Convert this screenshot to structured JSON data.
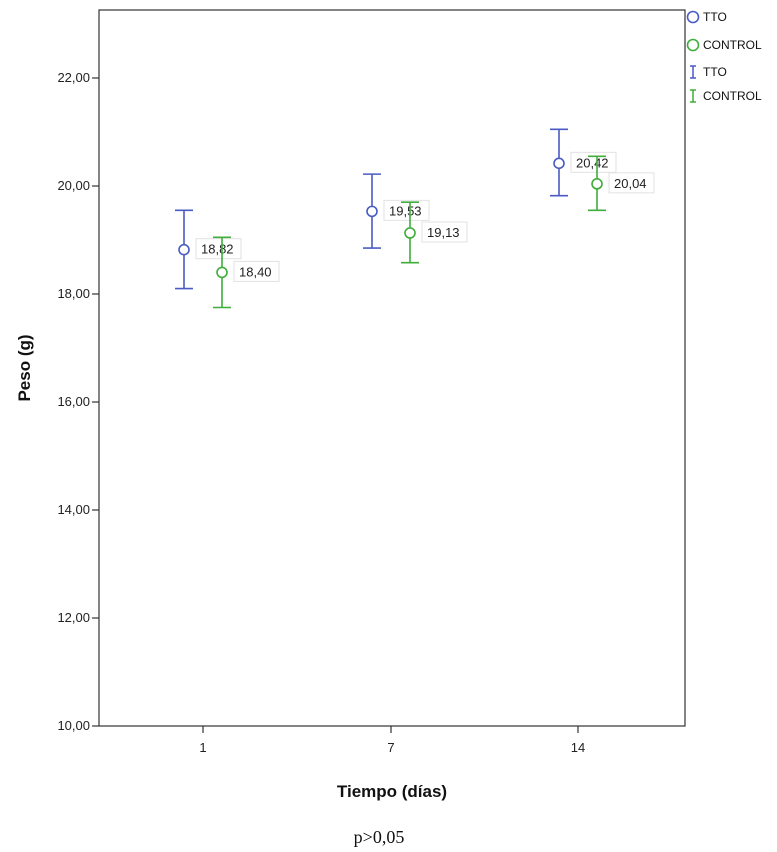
{
  "chart_data": {
    "type": "scatter",
    "title": "",
    "xlabel": "Tiempo (días)",
    "ylabel": "Peso (g)",
    "categories": [
      "1",
      "7",
      "14"
    ],
    "ylim": [
      10,
      23.5
    ],
    "yticks": [
      "10,00",
      "12,00",
      "14,00",
      "16,00",
      "18,00",
      "20,00",
      "22,00"
    ],
    "ytick_values": [
      10,
      12,
      14,
      16,
      18,
      20,
      22
    ],
    "grid": false,
    "legend_position": "top-right, outside plot",
    "legend": [
      {
        "symbol": "circle",
        "label": "TTO",
        "color": "#4a5bc4"
      },
      {
        "symbol": "circle",
        "label": "CONTROL",
        "color": "#3fae3a"
      },
      {
        "symbol": "errorbar",
        "label": "TTO",
        "color": "#4a5bc4"
      },
      {
        "symbol": "errorbar",
        "label": "CONTROL",
        "color": "#3fae3a"
      }
    ],
    "series": [
      {
        "name": "TTO",
        "color": "#4a5bc4",
        "values": [
          18.82,
          19.53,
          20.42
        ],
        "labels": [
          "18,82",
          "19,53",
          "20,42"
        ],
        "ci_low": [
          18.1,
          18.85,
          19.82
        ],
        "ci_high": [
          19.55,
          20.22,
          21.05
        ]
      },
      {
        "name": "CONTROL",
        "color": "#3fae3a",
        "values": [
          18.4,
          19.13,
          20.04
        ],
        "labels": [
          "18,40",
          "19,13",
          "20,04"
        ],
        "ci_low": [
          17.75,
          18.58,
          19.55
        ],
        "ci_high": [
          19.05,
          19.7,
          20.55
        ]
      }
    ]
  },
  "note": "p>0,05"
}
